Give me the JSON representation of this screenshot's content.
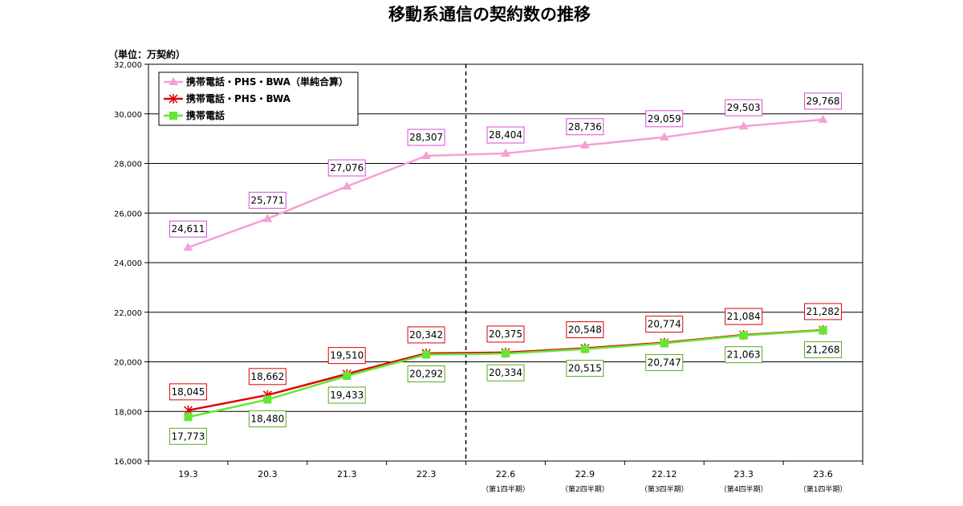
{
  "chart_data": {
    "type": "line",
    "title": "移動系通信の契約数の推移",
    "unit_label": "（単位：万契約）",
    "categories": [
      "19.3",
      "20.3",
      "21.3",
      "22.3",
      "22.6",
      "22.9",
      "22.12",
      "23.3",
      "23.6"
    ],
    "category_subs": [
      "",
      "",
      "",
      "",
      "（第1四半期）",
      "（第2四半期）",
      "（第3四半期）",
      "（第4四半期）",
      "（第1四半期）"
    ],
    "ylim": [
      16000,
      32000
    ],
    "yticks": [
      "16,000",
      "18,000",
      "20,000",
      "22,000",
      "24,000",
      "26,000",
      "28,000",
      "30,000",
      "32,000"
    ],
    "ytick_values": [
      16000,
      18000,
      20000,
      22000,
      24000,
      26000,
      28000,
      30000,
      32000
    ],
    "grid": true,
    "divider_after_category": "22.3",
    "legend_position": "top-left",
    "series": [
      {
        "name": "携帯電話・PHS・BWA（単純合算）",
        "color": "#f4a0d4",
        "marker": "triangle",
        "values": [
          24611,
          25771,
          27076,
          28307,
          28404,
          28736,
          29059,
          29503,
          29768
        ],
        "labels": [
          "24,611",
          "25,771",
          "27,076",
          "28,307",
          "28,404",
          "28,736",
          "29,059",
          "29,503",
          "29,768"
        ],
        "label_border": "#d84ad8",
        "label_position": "above"
      },
      {
        "name": "携帯電話・PHS・BWA",
        "color": "#e00000",
        "marker": "asterisk",
        "values": [
          18045,
          18662,
          19510,
          20342,
          20375,
          20548,
          20774,
          21084,
          21282
        ],
        "labels": [
          "18,045",
          "18,662",
          "19,510",
          "20,342",
          "20,375",
          "20,548",
          "20,774",
          "21,084",
          "21,282"
        ],
        "label_border": "#e00000",
        "label_position": "above"
      },
      {
        "name": "携帯電話",
        "color": "#66e633",
        "marker": "square",
        "values": [
          17773,
          18480,
          19433,
          20292,
          20334,
          20515,
          20747,
          21063,
          21268
        ],
        "labels": [
          "17,773",
          "18,480",
          "19,433",
          "20,292",
          "20,334",
          "20,515",
          "20,747",
          "21,063",
          "21,268"
        ],
        "label_border": "#55aa22",
        "label_position": "below"
      }
    ]
  }
}
